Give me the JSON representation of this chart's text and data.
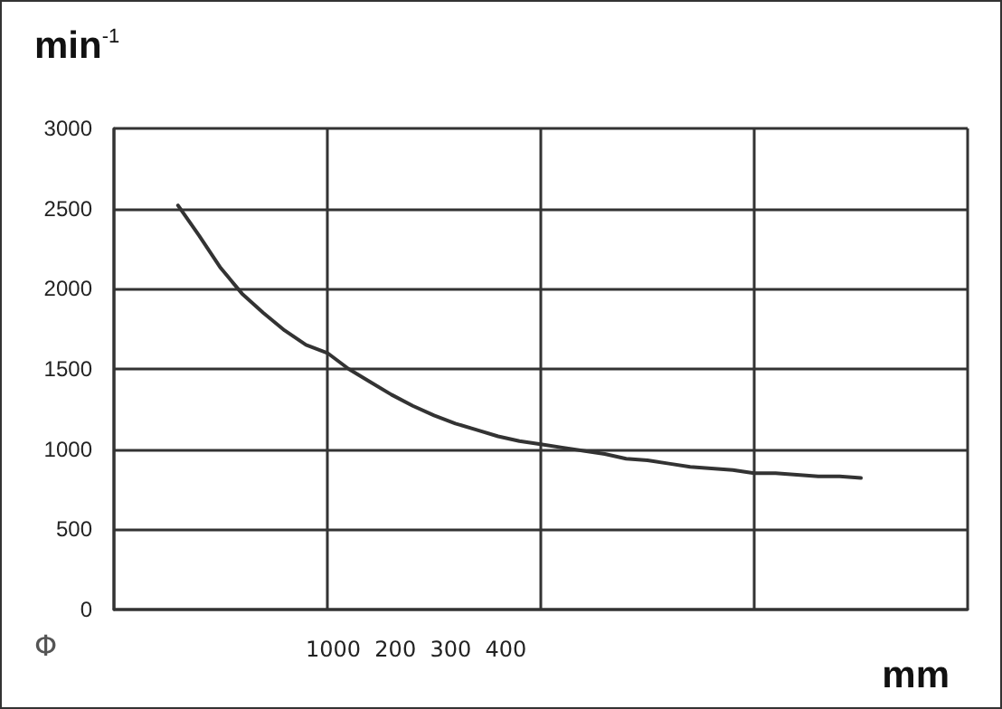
{
  "chart_data": {
    "type": "line",
    "ylabel": "min$^{-1}$",
    "xlabel": "mm",
    "annotations": [
      "Φ",
      "1000  200  300  400"
    ],
    "categories": [
      null,
      null,
      null,
      null,
      null,
      null,
      null,
      null,
      null,
      null,
      null,
      null,
      null,
      null,
      null,
      null,
      null,
      null,
      null,
      null,
      null,
      null,
      null,
      null,
      null,
      null,
      null,
      null,
      null,
      null,
      null,
      null,
      null,
      null,
      null,
      null,
      null,
      null,
      null,
      null,
      null
    ],
    "series": [
      {
        "color": "#333333",
        "values": [
          null,
          null,
          null,
          2520,
          2330,
          2130,
          1970,
          1850,
          1740,
          1650,
          1600,
          1500,
          1420,
          1340,
          1270,
          1210,
          1160,
          1120,
          1080,
          1050,
          1030,
          1010,
          990,
          970,
          940,
          930,
          910,
          890,
          880,
          870,
          850,
          850,
          840,
          830,
          830,
          820,
          null,
          null,
          null,
          null,
          null
        ]
      }
    ],
    "ylim": [
      0,
      3000
    ],
    "yticks": [
      0,
      500,
      1000,
      1500,
      2000,
      2500,
      3000
    ],
    "grid": true,
    "tick_labels": "y",
    "marker": "none",
    "line_style": "solid"
  }
}
